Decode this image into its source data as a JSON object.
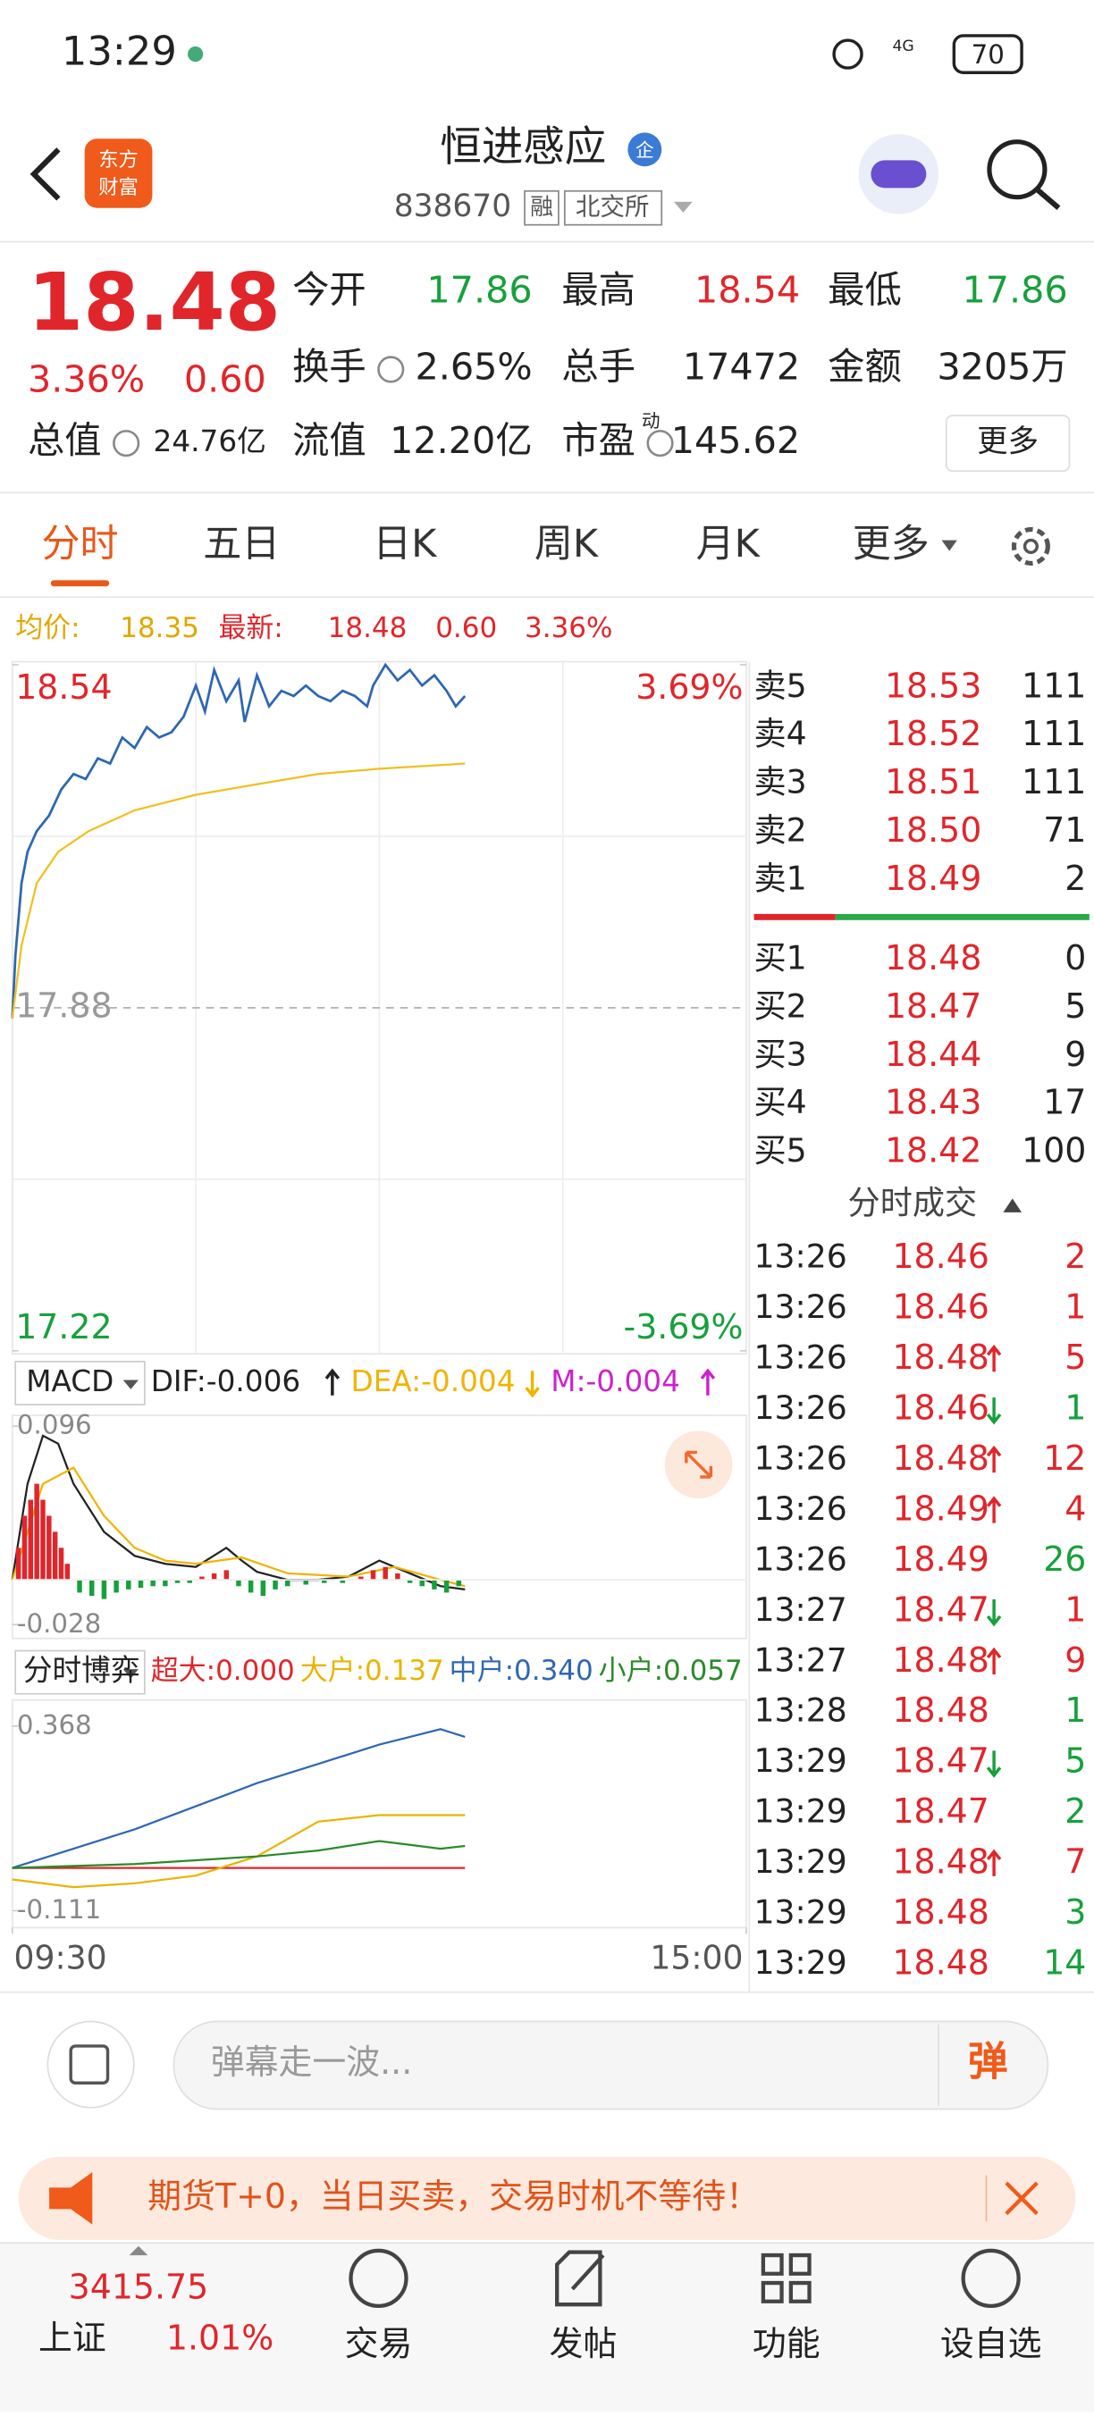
{
  "status_bar": {
    "time": "13:29",
    "network": "4G",
    "battery": "70"
  },
  "header": {
    "logo": [
      "东方",
      "财富"
    ],
    "title": "恒进感应",
    "badge": "企",
    "code": "838670",
    "margin_tag": "融",
    "exchange": "北交所"
  },
  "quote": {
    "price": "18.48",
    "change_pct": "3.36%",
    "change": "0.60",
    "stats": [
      {
        "label": "今开",
        "value": "17.86",
        "color": "#17a03c"
      },
      {
        "label": "最高",
        "value": "18.54",
        "color": "#e0262b"
      },
      {
        "label": "最低",
        "value": "17.86",
        "color": "#17a03c"
      },
      {
        "label": "换手",
        "value": "2.65%",
        "color": "#222222",
        "info": true
      },
      {
        "label": "总手",
        "value": "17472",
        "color": "#222222"
      },
      {
        "label": "金额",
        "value": "3205万",
        "color": "#222222"
      },
      {
        "label": "总值",
        "value": "24.76亿",
        "color": "#222222",
        "info": true
      },
      {
        "label": "流值",
        "value": "12.20亿",
        "color": "#222222"
      },
      {
        "label": "市盈",
        "value": "145.62",
        "color": "#222222",
        "info": true,
        "sup": "动"
      }
    ],
    "more": "更多"
  },
  "tabs": [
    "分时",
    "五日",
    "日K",
    "周K",
    "月K",
    "更多"
  ],
  "info_bar": {
    "avg_label": "均价:",
    "avg": "18.35",
    "latest_label": "最新:",
    "latest": "18.48",
    "change": "0.60",
    "change_pct": "3.36%"
  },
  "intraday": {
    "type": "line",
    "xlim": [
      0,
      240
    ],
    "ylim": [
      17.22,
      18.54
    ],
    "yticks": [
      18.54,
      17.88,
      17.22
    ],
    "y2lim": [
      -3.69,
      3.69
    ],
    "y2ticks": [
      {
        "value": 3.69,
        "label": "3.69%"
      },
      {
        "value": -3.69,
        "label": "-3.69%"
      }
    ],
    "xticks": [
      {
        "value": 0,
        "label": "09:30"
      },
      {
        "value": 240,
        "label": "15:00"
      }
    ],
    "series": [
      {
        "name": "price",
        "color": "#2e67b1",
        "kind": "line",
        "x": [
          0,
          1,
          3,
          5,
          8,
          12,
          16,
          20,
          24,
          28,
          32,
          36,
          40,
          44,
          48,
          52,
          56,
          60,
          63,
          66,
          70,
          74,
          76,
          80,
          84,
          88,
          92,
          96,
          100,
          104,
          108,
          112,
          116,
          118,
          122,
          126,
          130,
          134,
          138,
          142,
          145,
          148
        ],
        "values": [
          17.86,
          17.98,
          18.12,
          18.18,
          18.22,
          18.25,
          18.3,
          18.33,
          18.32,
          18.36,
          18.35,
          18.4,
          18.38,
          18.42,
          18.4,
          18.41,
          18.44,
          18.5,
          18.45,
          18.53,
          18.47,
          18.51,
          18.43,
          18.52,
          18.46,
          18.49,
          18.48,
          18.5,
          18.48,
          18.47,
          18.49,
          18.48,
          18.46,
          18.5,
          18.54,
          18.51,
          18.53,
          18.5,
          18.52,
          18.49,
          18.46,
          18.48
        ]
      },
      {
        "name": "avg",
        "color": "#f0c020",
        "kind": "line",
        "x": [
          0,
          3,
          8,
          15,
          25,
          40,
          60,
          80,
          100,
          120,
          148
        ],
        "values": [
          17.86,
          18.0,
          18.12,
          18.18,
          18.22,
          18.26,
          18.29,
          18.31,
          18.33,
          18.34,
          18.35
        ]
      }
    ]
  },
  "macd": {
    "type": "line",
    "title": "MACD",
    "xlim": [
      0,
      240
    ],
    "ylim": [
      -0.028,
      0.096
    ],
    "yticks": [
      0.096,
      -0.028
    ],
    "series": [
      {
        "name": "DIF:-0.006",
        "trend": "up",
        "color": "#222222",
        "kind": "line",
        "x": [
          0,
          5,
          10,
          15,
          20,
          30,
          40,
          50,
          60,
          70,
          75,
          80,
          90,
          100,
          110,
          120,
          130,
          140,
          148
        ],
        "values": [
          0,
          0.06,
          0.09,
          0.085,
          0.06,
          0.03,
          0.015,
          0.01,
          0.008,
          0.02,
          0.012,
          0.005,
          0,
          0,
          0.002,
          0.012,
          0.004,
          -0.004,
          -0.006
        ]
      },
      {
        "name": "DEA:-0.004",
        "trend": "down",
        "color": "#f0b400",
        "kind": "line",
        "x": [
          0,
          10,
          20,
          30,
          40,
          50,
          60,
          75,
          90,
          110,
          125,
          140,
          148
        ],
        "values": [
          0,
          0.06,
          0.07,
          0.04,
          0.02,
          0.012,
          0.01,
          0.014,
          0.004,
          0.002,
          0.008,
          0,
          -0.004
        ]
      },
      {
        "name": "M:-0.004",
        "trend": "up",
        "color": "#cc22cc",
        "kind": "bar",
        "x": [
          2,
          4,
          6,
          8,
          10,
          12,
          14,
          16,
          18,
          22,
          26,
          30,
          34,
          38,
          42,
          46,
          50,
          54,
          58,
          62,
          66,
          70,
          74,
          78,
          82,
          86,
          90,
          96,
          102,
          108,
          114,
          118,
          122,
          126,
          130,
          134,
          138,
          142,
          146
        ],
        "values": [
          0.02,
          0.04,
          0.05,
          0.06,
          0.05,
          0.04,
          0.03,
          0.02,
          0.01,
          -0.008,
          -0.01,
          -0.012,
          -0.008,
          -0.006,
          -0.005,
          -0.004,
          -0.004,
          -0.002,
          -0.002,
          0.002,
          0.004,
          0.006,
          -0.004,
          -0.008,
          -0.01,
          -0.006,
          -0.004,
          -0.003,
          -0.002,
          -0.002,
          0.002,
          0.006,
          0.008,
          0.004,
          -0.002,
          -0.004,
          -0.006,
          -0.008,
          -0.004
        ]
      }
    ]
  },
  "flow": {
    "type": "line",
    "title": "分时博弈",
    "xlim": [
      0,
      240
    ],
    "ylim": [
      -0.111,
      0.368
    ],
    "yticks": [
      0.368,
      -0.111
    ],
    "series": [
      {
        "name": "超大:0.000",
        "color": "#e0262b",
        "kind": "line",
        "x": [
          0,
          20,
          40,
          60,
          80,
          100,
          120,
          130,
          140,
          148
        ],
        "values": [
          0,
          0,
          0,
          0,
          0,
          0,
          0,
          0,
          0,
          0
        ]
      },
      {
        "name": "大户:0.137",
        "color": "#e8b400",
        "kind": "line",
        "x": [
          0,
          20,
          40,
          60,
          80,
          100,
          120,
          130,
          140,
          148
        ],
        "values": [
          -0.03,
          -0.05,
          -0.04,
          -0.02,
          0.03,
          0.12,
          0.137,
          0.137,
          0.137,
          0.137
        ]
      },
      {
        "name": "中户:0.340",
        "color": "#2e67b1",
        "kind": "line",
        "x": [
          0,
          20,
          40,
          60,
          80,
          100,
          120,
          130,
          140,
          148
        ],
        "values": [
          0,
          0.05,
          0.1,
          0.16,
          0.22,
          0.27,
          0.32,
          0.34,
          0.36,
          0.34
        ]
      },
      {
        "name": "小户:0.057",
        "color": "#2a8a2a",
        "kind": "line",
        "x": [
          0,
          20,
          40,
          60,
          80,
          100,
          120,
          130,
          140,
          148
        ],
        "values": [
          0,
          0.005,
          0.01,
          0.02,
          0.03,
          0.045,
          0.07,
          0.06,
          0.05,
          0.057
        ]
      }
    ]
  },
  "order_book": {
    "sell": [
      {
        "label": "卖5",
        "price": "18.53",
        "volume": "111"
      },
      {
        "label": "卖4",
        "price": "18.52",
        "volume": "111"
      },
      {
        "label": "卖3",
        "price": "18.51",
        "volume": "111"
      },
      {
        "label": "卖2",
        "price": "18.50",
        "volume": "71"
      },
      {
        "label": "卖1",
        "price": "18.49",
        "volume": "2"
      }
    ],
    "buy": [
      {
        "label": "买1",
        "price": "18.48",
        "volume": "0"
      },
      {
        "label": "买2",
        "price": "18.47",
        "volume": "5"
      },
      {
        "label": "买3",
        "price": "18.44",
        "volume": "9"
      },
      {
        "label": "买4",
        "price": "18.43",
        "volume": "17"
      },
      {
        "label": "买5",
        "price": "18.42",
        "volume": "100"
      }
    ]
  },
  "trades": {
    "title": "分时成交",
    "rows": [
      {
        "time": "13:26",
        "price": "18.46",
        "dir": null,
        "volume": "2",
        "side": "buy"
      },
      {
        "time": "13:26",
        "price": "18.46",
        "dir": null,
        "volume": "1",
        "side": "buy"
      },
      {
        "time": "13:26",
        "price": "18.48",
        "dir": "up",
        "volume": "5",
        "side": "buy"
      },
      {
        "time": "13:26",
        "price": "18.46",
        "dir": "down",
        "volume": "1",
        "side": "sell"
      },
      {
        "time": "13:26",
        "price": "18.48",
        "dir": "up",
        "volume": "12",
        "side": "buy"
      },
      {
        "time": "13:26",
        "price": "18.49",
        "dir": "up",
        "volume": "4",
        "side": "buy"
      },
      {
        "time": "13:26",
        "price": "18.49",
        "dir": null,
        "volume": "26",
        "side": "sell"
      },
      {
        "time": "13:27",
        "price": "18.47",
        "dir": "down",
        "volume": "1",
        "side": "buy"
      },
      {
        "time": "13:27",
        "price": "18.48",
        "dir": "up",
        "volume": "9",
        "side": "buy"
      },
      {
        "time": "13:28",
        "price": "18.48",
        "dir": null,
        "volume": "1",
        "side": "sell"
      },
      {
        "time": "13:29",
        "price": "18.47",
        "dir": "down",
        "volume": "5",
        "side": "sell"
      },
      {
        "time": "13:29",
        "price": "18.47",
        "dir": null,
        "volume": "2",
        "side": "sell"
      },
      {
        "time": "13:29",
        "price": "18.48",
        "dir": "up",
        "volume": "7",
        "side": "buy"
      },
      {
        "time": "13:29",
        "price": "18.48",
        "dir": null,
        "volume": "3",
        "side": "sell"
      },
      {
        "time": "13:29",
        "price": "18.48",
        "dir": null,
        "volume": "14",
        "side": "sell"
      }
    ]
  },
  "comment_bar": {
    "placeholder": "弹幕走一波...",
    "button": "弹"
  },
  "banner": {
    "text": "期货T+0，当日买卖，交易时机不等待！"
  },
  "bottom_nav": {
    "index_value": "3415.75",
    "index_name": "上证",
    "index_change": "1.01%",
    "items": [
      "交易",
      "发帖",
      "功能",
      "设自选"
    ]
  }
}
